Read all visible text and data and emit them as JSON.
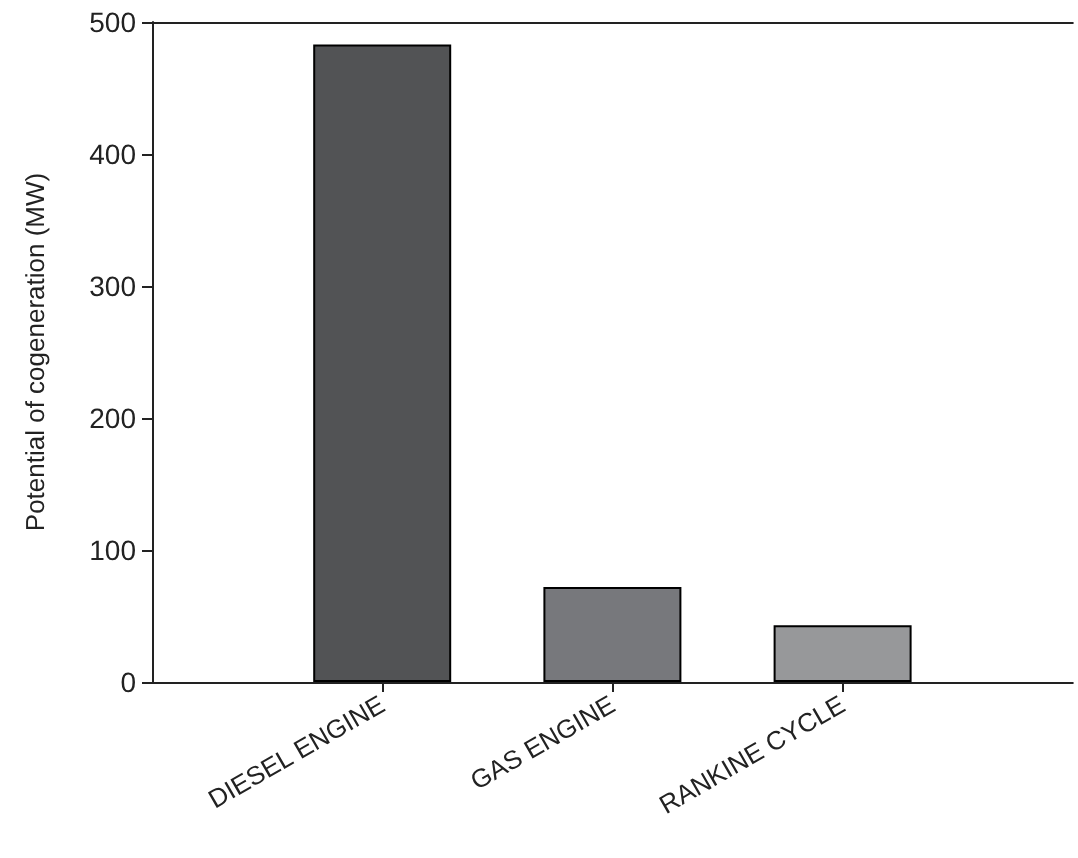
{
  "chart_data": {
    "type": "bar",
    "ylabel": "Potential of cogeneration (MW)",
    "categories": [
      "DIESEL ENGINE",
      "GAS ENGINE",
      "RANKINE CYCLE"
    ],
    "values": [
      483,
      72,
      43
    ],
    "colors": [
      "#525355",
      "#77787c",
      "#97989a"
    ],
    "ylim": [
      0,
      500
    ],
    "yticks": [
      0,
      100,
      200,
      300,
      400,
      500
    ],
    "grid": false
  }
}
